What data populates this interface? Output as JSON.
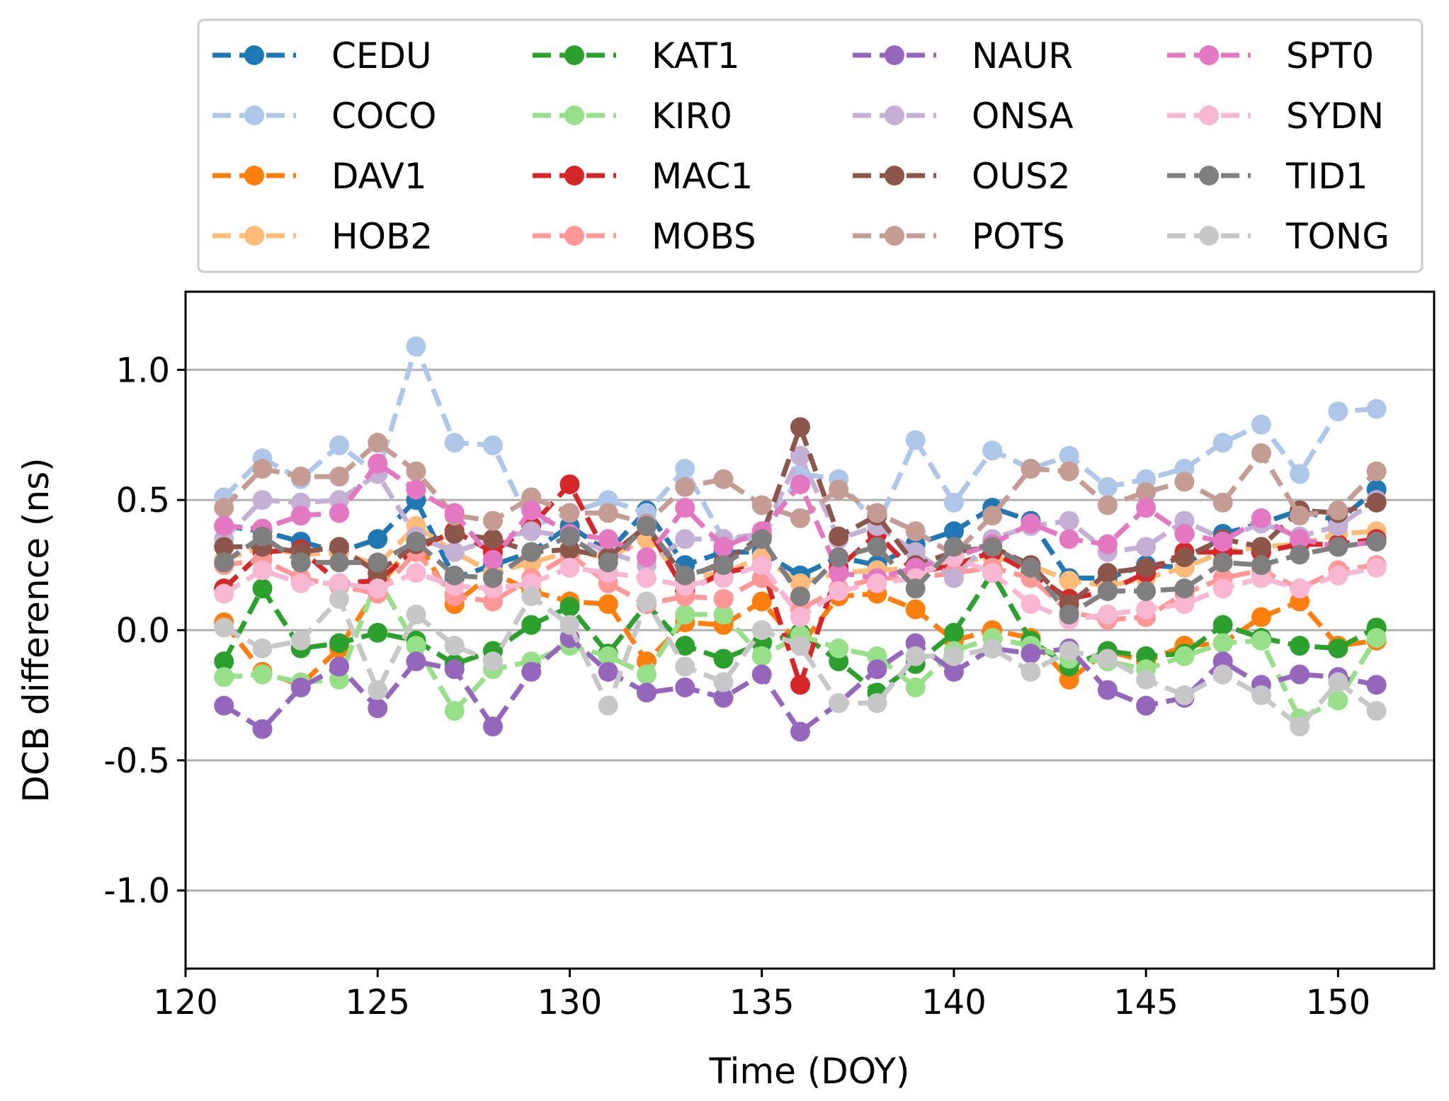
{
  "chart_data": {
    "type": "line",
    "title": "",
    "xlabel": "Time (DOY)",
    "ylabel": "DCB difference (ns)",
    "xlim": [
      120,
      152.5
    ],
    "ylim": [
      -1.3,
      1.3
    ],
    "xticks": [
      120,
      125,
      130,
      135,
      140,
      145,
      150
    ],
    "xtick_labels": [
      "120",
      "125",
      "130",
      "135",
      "140",
      "145",
      "150"
    ],
    "yticks": [
      -1.0,
      -0.5,
      0.0,
      0.5,
      1.0
    ],
    "ytick_labels": [
      "-1.0",
      "-0.5",
      "0.0",
      "0.5",
      "1.0"
    ],
    "grid": "horizontal",
    "legend_position": "above",
    "legend_columns": 4,
    "x": [
      121,
      122,
      123,
      124,
      125,
      126,
      127,
      128,
      129,
      130,
      131,
      132,
      133,
      134,
      135,
      136,
      137,
      138,
      139,
      140,
      141,
      142,
      143,
      144,
      145,
      146,
      147,
      148,
      149,
      150,
      151
    ],
    "series": [
      {
        "name": "CEDU",
        "color": "#1f77b4",
        "values": [
          0.4,
          0.38,
          0.34,
          0.3,
          0.35,
          0.5,
          0.2,
          0.25,
          0.3,
          0.4,
          0.3,
          0.46,
          0.25,
          0.3,
          0.3,
          0.21,
          0.28,
          0.25,
          0.33,
          0.38,
          0.47,
          0.42,
          0.2,
          0.2,
          0.25,
          0.24,
          0.37,
          0.41,
          0.46,
          0.42,
          0.54
        ]
      },
      {
        "name": "COCO",
        "color": "#aec7e8",
        "values": [
          0.51,
          0.66,
          0.58,
          0.71,
          0.6,
          1.09,
          0.72,
          0.71,
          0.4,
          0.45,
          0.5,
          0.45,
          0.62,
          0.35,
          0.35,
          0.6,
          0.58,
          0.4,
          0.73,
          0.49,
          0.69,
          0.62,
          0.67,
          0.55,
          0.58,
          0.62,
          0.72,
          0.79,
          0.6,
          0.84,
          0.85
        ]
      },
      {
        "name": "DAV1",
        "color": "#ff7f0e",
        "values": [
          0.03,
          -0.16,
          -0.21,
          -0.07,
          0.16,
          0.35,
          0.1,
          0.22,
          0.15,
          0.11,
          0.1,
          -0.12,
          0.03,
          0.02,
          0.11,
          -0.06,
          0.13,
          0.14,
          0.08,
          -0.04,
          0.0,
          -0.03,
          -0.19,
          -0.08,
          -0.12,
          -0.06,
          -0.05,
          0.05,
          0.11,
          -0.06,
          -0.04
        ]
      },
      {
        "name": "HOB2",
        "color": "#ffbb78",
        "values": [
          0.27,
          0.32,
          0.29,
          0.3,
          0.25,
          0.4,
          0.3,
          0.22,
          0.26,
          0.3,
          0.28,
          0.35,
          0.2,
          0.22,
          0.28,
          0.18,
          0.22,
          0.23,
          0.24,
          0.26,
          0.28,
          0.25,
          0.19,
          0.17,
          0.2,
          0.24,
          0.3,
          0.32,
          0.33,
          0.37,
          0.38
        ]
      },
      {
        "name": "KAT1",
        "color": "#2ca02c",
        "values": [
          -0.12,
          0.16,
          -0.07,
          -0.05,
          -0.01,
          -0.04,
          -0.13,
          -0.08,
          0.02,
          0.09,
          -0.09,
          0.1,
          -0.06,
          -0.11,
          -0.05,
          -0.01,
          -0.12,
          -0.24,
          -0.13,
          -0.01,
          0.22,
          -0.04,
          -0.14,
          -0.08,
          -0.1,
          -0.09,
          0.02,
          -0.03,
          -0.06,
          -0.07,
          0.01
        ]
      },
      {
        "name": "KIR0",
        "color": "#98df8a",
        "values": [
          -0.18,
          -0.17,
          -0.2,
          -0.19,
          0.2,
          -0.06,
          -0.31,
          -0.15,
          -0.12,
          -0.06,
          -0.1,
          -0.17,
          0.06,
          0.06,
          -0.1,
          -0.02,
          -0.07,
          -0.1,
          -0.22,
          -0.08,
          -0.03,
          -0.06,
          -0.11,
          -0.12,
          -0.15,
          -0.1,
          -0.05,
          -0.04,
          -0.34,
          -0.27,
          -0.03
        ]
      },
      {
        "name": "MAC1",
        "color": "#d62728",
        "values": [
          0.16,
          0.3,
          0.31,
          0.18,
          0.19,
          0.31,
          0.38,
          0.3,
          0.4,
          0.56,
          0.28,
          0.4,
          0.15,
          0.22,
          0.25,
          -0.21,
          0.24,
          0.37,
          0.22,
          0.25,
          0.3,
          0.22,
          0.12,
          0.15,
          0.22,
          0.3,
          0.3,
          0.3,
          0.33,
          0.33,
          0.35
        ]
      },
      {
        "name": "MOBS",
        "color": "#ff9896",
        "values": [
          0.25,
          0.27,
          0.2,
          0.17,
          0.14,
          0.3,
          0.13,
          0.11,
          0.2,
          0.29,
          0.18,
          0.1,
          0.13,
          0.12,
          0.2,
          0.08,
          0.16,
          0.2,
          0.2,
          0.22,
          0.24,
          0.2,
          0.07,
          0.04,
          0.05,
          0.14,
          0.2,
          0.23,
          0.16,
          0.23,
          0.25
        ]
      },
      {
        "name": "NAUR",
        "color": "#9467bd",
        "values": [
          -0.29,
          -0.38,
          -0.22,
          -0.14,
          -0.3,
          -0.12,
          -0.15,
          -0.37,
          -0.16,
          -0.03,
          -0.16,
          -0.24,
          -0.22,
          -0.26,
          -0.17,
          -0.39,
          -0.28,
          -0.15,
          -0.05,
          -0.16,
          -0.07,
          -0.09,
          -0.07,
          -0.23,
          -0.29,
          -0.26,
          -0.12,
          -0.21,
          -0.17,
          -0.18,
          -0.21
        ]
      },
      {
        "name": "ONSA",
        "color": "#c5b0d5",
        "values": [
          0.35,
          0.5,
          0.49,
          0.5,
          0.6,
          0.36,
          0.3,
          0.35,
          0.38,
          0.36,
          0.3,
          0.25,
          0.35,
          0.35,
          0.37,
          0.67,
          0.35,
          0.4,
          0.3,
          0.2,
          0.35,
          0.4,
          0.42,
          0.3,
          0.32,
          0.42,
          0.35,
          0.41,
          0.36,
          0.4,
          0.5
        ]
      },
      {
        "name": "OUS2",
        "color": "#8c564b",
        "values": [
          0.32,
          0.32,
          0.3,
          0.32,
          0.22,
          0.33,
          0.37,
          0.35,
          0.3,
          0.31,
          0.28,
          0.4,
          0.2,
          0.26,
          0.36,
          0.78,
          0.36,
          0.44,
          0.25,
          0.3,
          0.32,
          0.25,
          0.1,
          0.22,
          0.24,
          0.28,
          0.35,
          0.32,
          0.46,
          0.45,
          0.49
        ]
      },
      {
        "name": "POTS",
        "color": "#c49c94",
        "values": [
          0.47,
          0.62,
          0.59,
          0.59,
          0.72,
          0.61,
          0.44,
          0.42,
          0.51,
          0.45,
          0.45,
          0.41,
          0.55,
          0.58,
          0.48,
          0.43,
          0.54,
          0.45,
          0.38,
          0.29,
          0.44,
          0.62,
          0.61,
          0.48,
          0.53,
          0.57,
          0.49,
          0.68,
          0.44,
          0.46,
          0.61
        ]
      },
      {
        "name": "SPT0",
        "color": "#e377c2",
        "values": [
          0.4,
          0.39,
          0.44,
          0.45,
          0.64,
          0.54,
          0.45,
          0.27,
          0.46,
          0.37,
          0.35,
          0.28,
          0.47,
          0.32,
          0.38,
          0.56,
          0.22,
          0.2,
          0.24,
          0.28,
          0.33,
          0.41,
          0.35,
          0.33,
          0.47,
          0.37,
          0.34,
          0.43,
          0.35,
          0.32,
          0.34
        ]
      },
      {
        "name": "SYDN",
        "color": "#f7b6d2",
        "values": [
          0.14,
          0.23,
          0.18,
          0.18,
          0.16,
          0.22,
          0.17,
          0.16,
          0.18,
          0.24,
          0.22,
          0.2,
          0.17,
          0.2,
          0.25,
          0.05,
          0.15,
          0.18,
          0.2,
          0.28,
          0.22,
          0.1,
          0.04,
          0.06,
          0.08,
          0.1,
          0.16,
          0.2,
          0.16,
          0.21,
          0.24
        ]
      },
      {
        "name": "TID1",
        "color": "#7f7f7f",
        "values": [
          0.26,
          0.36,
          0.26,
          0.26,
          0.26,
          0.34,
          0.21,
          0.2,
          0.3,
          0.36,
          0.26,
          0.4,
          0.21,
          0.25,
          0.35,
          0.13,
          0.28,
          0.32,
          0.16,
          0.32,
          0.32,
          0.24,
          0.06,
          0.15,
          0.15,
          0.16,
          0.26,
          0.25,
          0.29,
          0.32,
          0.34
        ]
      },
      {
        "name": "TONG",
        "color": "#c7c7c7",
        "values": [
          0.01,
          -0.07,
          -0.04,
          0.12,
          -0.23,
          0.06,
          -0.06,
          -0.12,
          0.13,
          0.02,
          -0.29,
          0.11,
          -0.14,
          -0.2,
          0.0,
          -0.06,
          -0.28,
          -0.28,
          -0.1,
          -0.1,
          -0.07,
          -0.16,
          -0.08,
          -0.11,
          -0.19,
          -0.25,
          -0.17,
          -0.25,
          -0.37,
          -0.2,
          -0.31
        ]
      }
    ]
  }
}
